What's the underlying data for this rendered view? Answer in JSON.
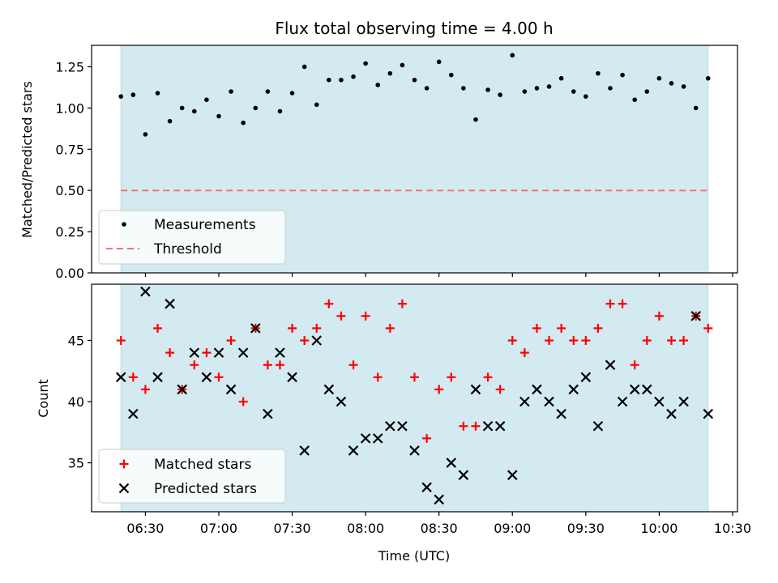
{
  "chart_data": [
    {
      "type": "scatter",
      "title": "Flux total observing time = 4.00 h",
      "xlabel": "",
      "ylabel": "Matched/Predicted stars",
      "xlim": [
        "06:08",
        "10:32"
      ],
      "ylim": [
        0,
        1.38
      ],
      "yticks": [
        0.0,
        0.25,
        0.5,
        0.75,
        1.0,
        1.25
      ],
      "ytick_labels": [
        "0.00",
        "0.25",
        "0.50",
        "0.75",
        "1.00",
        "1.25"
      ],
      "shaded_span": [
        "06:20",
        "10:20"
      ],
      "threshold": 0.5,
      "legend_position": "lower left",
      "legend": [
        "Measurements",
        "Threshold"
      ],
      "x": [
        "06:20",
        "06:25",
        "06:30",
        "06:35",
        "06:40",
        "06:45",
        "06:50",
        "06:55",
        "07:00",
        "07:05",
        "07:10",
        "07:15",
        "07:20",
        "07:25",
        "07:30",
        "07:35",
        "07:40",
        "07:45",
        "07:50",
        "07:55",
        "08:00",
        "08:05",
        "08:10",
        "08:15",
        "08:20",
        "08:25",
        "08:30",
        "08:35",
        "08:40",
        "08:45",
        "08:50",
        "08:55",
        "09:00",
        "09:05",
        "09:10",
        "09:15",
        "09:20",
        "09:25",
        "09:30",
        "09:35",
        "09:40",
        "09:45",
        "09:50",
        "09:55",
        "10:00",
        "10:05",
        "10:10",
        "10:15",
        "10:20"
      ],
      "series": [
        {
          "name": "Measurements",
          "values": [
            1.07,
            1.08,
            0.84,
            1.09,
            0.92,
            1.0,
            0.98,
            1.05,
            0.95,
            1.1,
            0.91,
            1.0,
            1.1,
            0.98,
            1.09,
            1.25,
            1.02,
            1.17,
            1.17,
            1.19,
            1.27,
            1.14,
            1.21,
            1.26,
            1.17,
            1.12,
            1.28,
            1.2,
            1.12,
            0.93,
            1.11,
            1.08,
            1.32,
            1.1,
            1.12,
            1.13,
            1.18,
            1.1,
            1.07,
            1.21,
            1.12,
            1.2,
            1.05,
            1.1,
            1.18,
            1.15,
            1.13,
            1.0,
            1.18
          ]
        },
        {
          "name": "Threshold",
          "values": [
            0.5,
            0.5
          ]
        }
      ]
    },
    {
      "type": "scatter",
      "title": "",
      "xlabel": "Time (UTC)",
      "ylabel": "Count",
      "xlim": [
        "06:08",
        "10:32"
      ],
      "ylim": [
        31.0,
        49.6
      ],
      "yticks": [
        35,
        40,
        45
      ],
      "ytick_labels": [
        "35",
        "40",
        "45"
      ],
      "xticks": [
        "06:30",
        "07:00",
        "07:30",
        "08:00",
        "08:30",
        "09:00",
        "09:30",
        "10:00",
        "10:30"
      ],
      "shaded_span": [
        "06:20",
        "10:20"
      ],
      "legend_position": "lower left",
      "legend": [
        "Matched stars",
        "Predicted stars"
      ],
      "x": [
        "06:20",
        "06:25",
        "06:30",
        "06:35",
        "06:40",
        "06:45",
        "06:50",
        "06:55",
        "07:00",
        "07:05",
        "07:10",
        "07:15",
        "07:20",
        "07:25",
        "07:30",
        "07:35",
        "07:40",
        "07:45",
        "07:50",
        "07:55",
        "08:00",
        "08:05",
        "08:10",
        "08:15",
        "08:20",
        "08:25",
        "08:30",
        "08:35",
        "08:40",
        "08:45",
        "08:50",
        "08:55",
        "09:00",
        "09:05",
        "09:10",
        "09:15",
        "09:20",
        "09:25",
        "09:30",
        "09:35",
        "09:40",
        "09:45",
        "09:50",
        "09:55",
        "10:00",
        "10:05",
        "10:10",
        "10:15",
        "10:20"
      ],
      "series": [
        {
          "name": "Matched stars",
          "values": [
            45,
            42,
            41,
            46,
            44,
            41,
            43,
            44,
            42,
            45,
            40,
            46,
            43,
            43,
            46,
            45,
            46,
            48,
            47,
            43,
            47,
            42,
            46,
            48,
            42,
            37,
            41,
            42,
            38,
            38,
            42,
            41,
            45,
            44,
            46,
            45,
            46,
            45,
            45,
            46,
            48,
            48,
            43,
            45,
            47,
            45,
            45,
            47,
            46
          ]
        },
        {
          "name": "Predicted stars",
          "values": [
            42,
            39,
            49,
            42,
            48,
            41,
            44,
            42,
            44,
            41,
            44,
            46,
            39,
            44,
            42,
            36,
            45,
            41,
            40,
            36,
            37,
            37,
            38,
            38,
            36,
            33,
            32,
            35,
            34,
            41,
            38,
            38,
            34,
            40,
            41,
            40,
            39,
            41,
            42,
            38,
            43,
            40,
            41,
            41,
            40,
            39,
            40,
            47,
            39
          ]
        }
      ]
    }
  ],
  "colors": {
    "shade": "#d3eaf0",
    "shade_edge": "#b7dbe5",
    "measurement": "#000000",
    "threshold": "#f27474",
    "matched": "#ff0000",
    "predicted": "#000000"
  }
}
